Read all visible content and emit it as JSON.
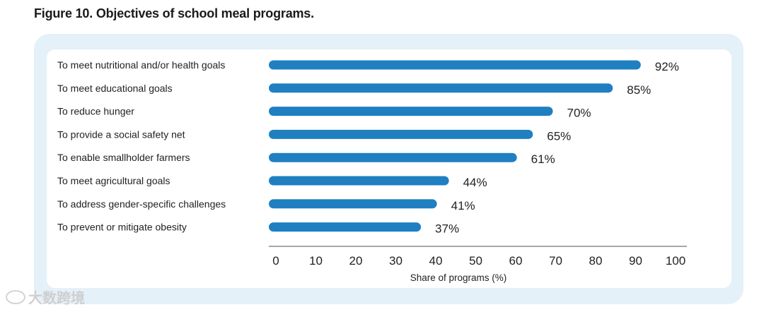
{
  "figure_title": "Figure 10. Objectives of school meal programs.",
  "watermark": "大数跨境",
  "watermark_icon": "cloud-logo-icon",
  "colors": {
    "bar": "#1f7fc1",
    "panel": "#e5f1f8",
    "axis": "#888888"
  },
  "chart_data": {
    "type": "bar",
    "orientation": "horizontal",
    "title": "Figure 10. Objectives of school meal programs.",
    "categories": [
      "To meet nutritional and/or health goals",
      "To meet educational goals",
      "To reduce hunger",
      "To provide a social safety net",
      "To enable smallholder farmers",
      "To meet agricultural goals",
      "To address gender-specific challenges",
      "To prevent or mitigate obesity"
    ],
    "values": [
      92,
      85,
      70,
      65,
      61,
      44,
      41,
      37
    ],
    "value_labels": [
      "92%",
      "85%",
      "70%",
      "65%",
      "61%",
      "44%",
      "41%",
      "37%"
    ],
    "xlabel": "Share of programs (%)",
    "ylabel": "",
    "xlim": [
      0,
      100
    ],
    "xticks": [
      "0",
      "10",
      "20",
      "30",
      "40",
      "50",
      "60",
      "70",
      "80",
      "90",
      "100"
    ],
    "grid": false,
    "legend": "none"
  }
}
